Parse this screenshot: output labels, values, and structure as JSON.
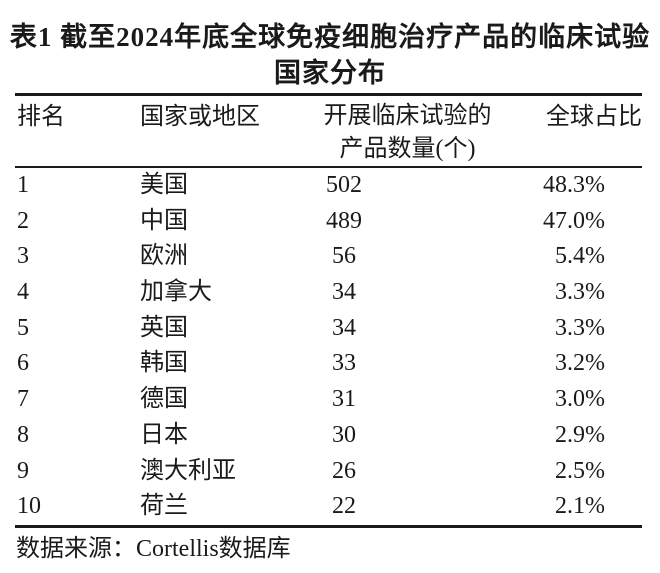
{
  "title": {
    "line1": "表1  截至2024年底全球免疫细胞治疗产品的临床试验",
    "line2": "国家分布"
  },
  "table": {
    "header": {
      "rank": "排名",
      "country": "国家或地区",
      "products_line1": "开展临床试验的",
      "products_line2": "产品数量(个)",
      "share": "全球占比"
    },
    "rows": [
      {
        "rank": "1",
        "country": "美国",
        "products": "502",
        "share": "48.3%"
      },
      {
        "rank": "2",
        "country": "中国",
        "products": "489",
        "share": "47.0%"
      },
      {
        "rank": "3",
        "country": "欧洲",
        "products": "56",
        "share": "5.4%"
      },
      {
        "rank": "4",
        "country": "加拿大",
        "products": "34",
        "share": "3.3%"
      },
      {
        "rank": "5",
        "country": "英国",
        "products": "34",
        "share": "3.3%"
      },
      {
        "rank": "6",
        "country": "韩国",
        "products": "33",
        "share": "3.2%"
      },
      {
        "rank": "7",
        "country": "德国",
        "products": "31",
        "share": "3.0%"
      },
      {
        "rank": "8",
        "country": "日本",
        "products": "30",
        "share": "2.9%"
      },
      {
        "rank": "9",
        "country": "澳大利亚",
        "products": "26",
        "share": "2.5%"
      },
      {
        "rank": "10",
        "country": "荷兰",
        "products": "22",
        "share": "2.1%"
      }
    ]
  },
  "footer": {
    "source": "数据来源：Cortellis数据库"
  },
  "colors": {
    "background": "#ffffff",
    "text": "#1a1a1a",
    "rule": "#1a1a1a"
  },
  "chart_data": {
    "type": "table",
    "title": "表1 截至2024年底全球免疫细胞治疗产品的临床试验国家分布",
    "columns": [
      "排名",
      "国家或地区",
      "开展临床试验的产品数量(个)",
      "全球占比"
    ],
    "rows": [
      [
        1,
        "美国",
        502,
        "48.3%"
      ],
      [
        2,
        "中国",
        489,
        "47.0%"
      ],
      [
        3,
        "欧洲",
        56,
        "5.4%"
      ],
      [
        4,
        "加拿大",
        34,
        "3.3%"
      ],
      [
        5,
        "英国",
        34,
        "3.3%"
      ],
      [
        6,
        "韩国",
        33,
        "3.2%"
      ],
      [
        7,
        "德国",
        31,
        "3.0%"
      ],
      [
        8,
        "日本",
        30,
        "2.9%"
      ],
      [
        9,
        "澳大利亚",
        26,
        "2.5%"
      ],
      [
        10,
        "荷兰",
        22,
        "2.1%"
      ]
    ],
    "source_note": "数据来源：Cortellis数据库"
  }
}
